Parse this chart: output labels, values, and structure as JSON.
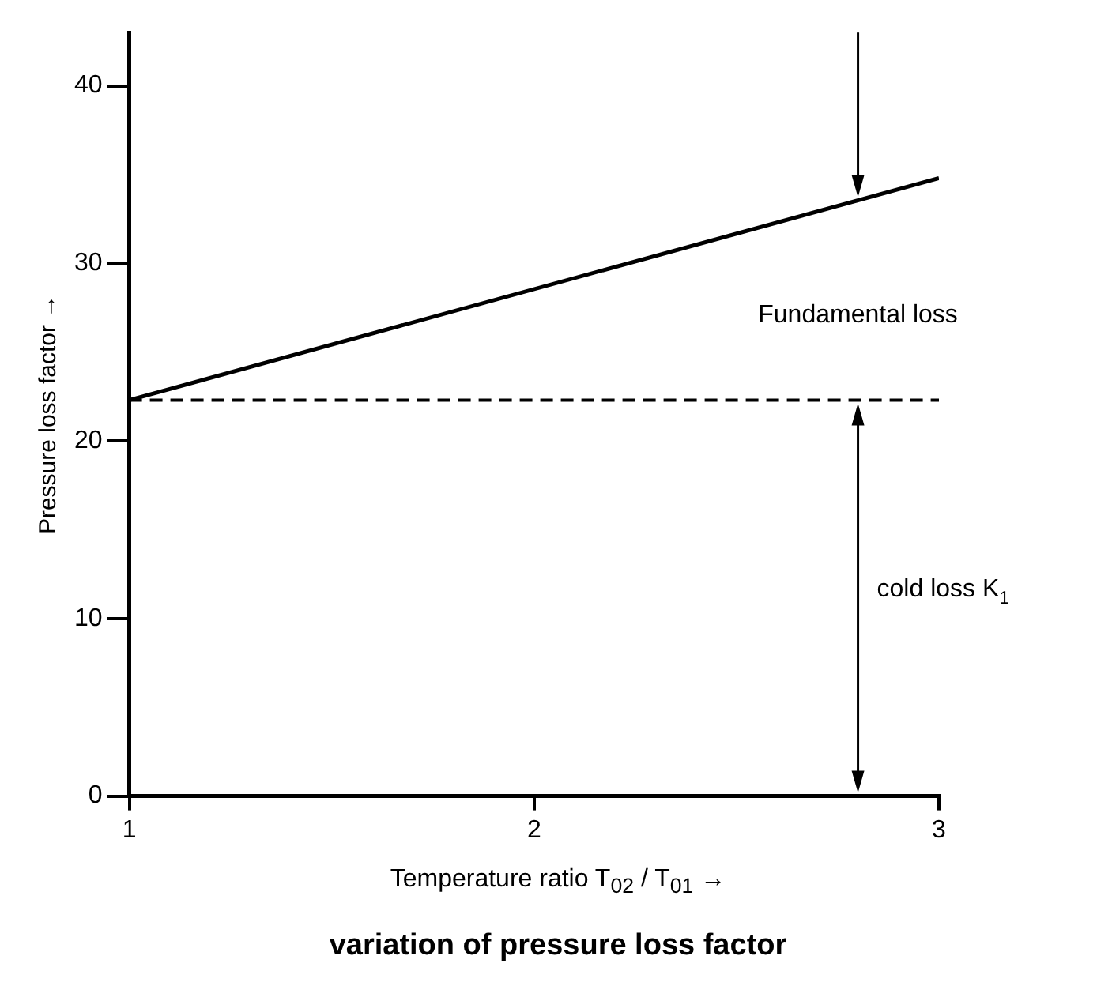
{
  "chart_data": {
    "type": "line",
    "title": "variation of pressure loss factor",
    "xlabel": "Temperature ratio T$_{02}$ / T$_{01}$ →",
    "ylabel": "Pressure loss factor →",
    "series": [
      {
        "x": [
          1,
          3
        ],
        "values": [
          22.3,
          34.8
        ],
        "color": "#000000"
      }
    ],
    "xlim": [
      1,
      3
    ],
    "xticks": [
      1,
      2,
      3
    ],
    "ylim": [
      0,
      43
    ],
    "yticks": [
      0,
      10,
      20,
      30,
      40
    ],
    "ref_lines": [
      {
        "axis": "y",
        "value": 22.3,
        "color": "#000000",
        "line_style": "dashed"
      }
    ],
    "annotations": [
      "Fundamental loss",
      "cold loss K$_{1}$"
    ],
    "grid": false,
    "legend": false,
    "marker": "none",
    "line_style": "solid"
  }
}
